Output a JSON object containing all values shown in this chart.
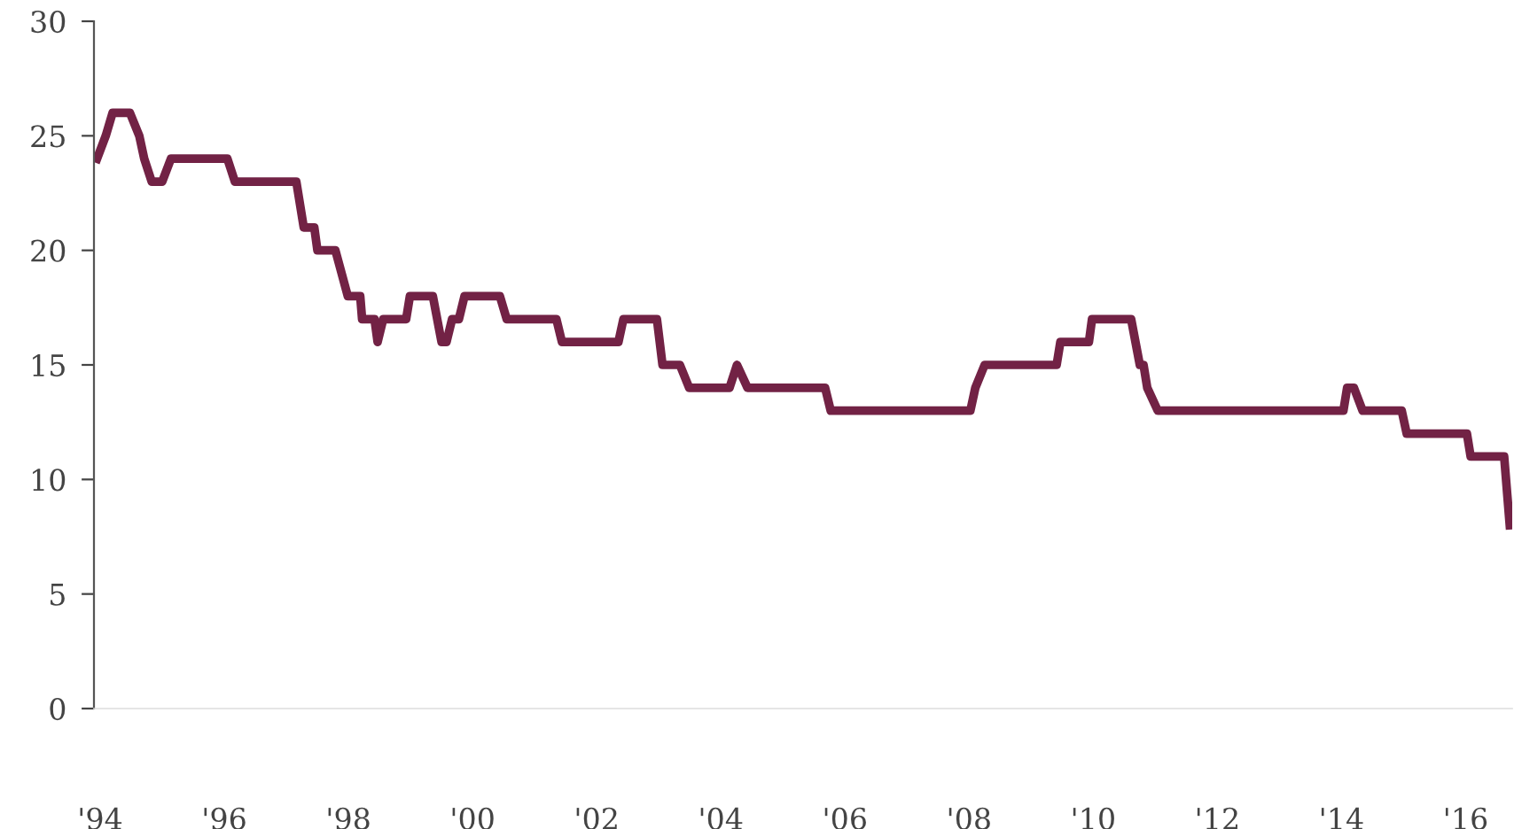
{
  "chart_data": {
    "type": "line",
    "x": [
      1993.95,
      1994.09,
      1994.2,
      1994.48,
      1994.63,
      1994.71,
      1994.83,
      1995.0,
      1995.14,
      1996.05,
      1996.17,
      1997.16,
      1997.28,
      1997.45,
      1997.5,
      1997.79,
      1997.99,
      1998.19,
      1998.22,
      1998.42,
      1998.47,
      1998.56,
      1998.93,
      1998.99,
      1999.36,
      1999.5,
      1999.58,
      1999.67,
      1999.78,
      1999.87,
      2000.44,
      2000.55,
      2001.35,
      2001.44,
      2002.35,
      2002.43,
      2002.97,
      2003.06,
      2003.34,
      2003.49,
      2004.14,
      2004.26,
      2004.43,
      2005.68,
      2005.77,
      2008.02,
      2008.1,
      2008.25,
      2009.41,
      2009.47,
      2009.93,
      2009.98,
      2010.61,
      2010.75,
      2010.81,
      2010.87,
      2011.04,
      2014.03,
      2014.09,
      2014.2,
      2014.34,
      2014.97,
      2015.05,
      2016.02,
      2016.08,
      2016.62,
      2016.71
    ],
    "series": [
      {
        "color": "#722245",
        "values": [
          24,
          25,
          26,
          26,
          25,
          24,
          23,
          23,
          24,
          24,
          23,
          23,
          21,
          21,
          20,
          20,
          18,
          18,
          17,
          17,
          16,
          17,
          17,
          18,
          18,
          16,
          16,
          17,
          17,
          18,
          18,
          17,
          17,
          16,
          16,
          17,
          17,
          15,
          15,
          14,
          14,
          15,
          14,
          14,
          13,
          13,
          14,
          15,
          15,
          16,
          16,
          17,
          17,
          15,
          15,
          14,
          13,
          13,
          14,
          14,
          13,
          13,
          12,
          12,
          11,
          11,
          8
        ]
      }
    ],
    "xlim": [
      1993.9,
      2016.75
    ],
    "ylim": [
      0,
      30
    ],
    "xticks": [
      {
        "value": 1994,
        "label": "'94"
      },
      {
        "value": 1996,
        "label": "'96"
      },
      {
        "value": 1998,
        "label": "'98"
      },
      {
        "value": 2000,
        "label": "'00"
      },
      {
        "value": 2002,
        "label": "'02"
      },
      {
        "value": 2004,
        "label": "'04"
      },
      {
        "value": 2006,
        "label": "'06"
      },
      {
        "value": 2008,
        "label": "'08"
      },
      {
        "value": 2010,
        "label": "'10"
      },
      {
        "value": 2012,
        "label": "'12"
      },
      {
        "value": 2014,
        "label": "'14"
      },
      {
        "value": 2016,
        "label": "'16"
      }
    ],
    "yticks": [
      0,
      5,
      10,
      15,
      20,
      25,
      30
    ],
    "grid": false,
    "legend": false,
    "marker": "none",
    "line_style": "solid"
  }
}
